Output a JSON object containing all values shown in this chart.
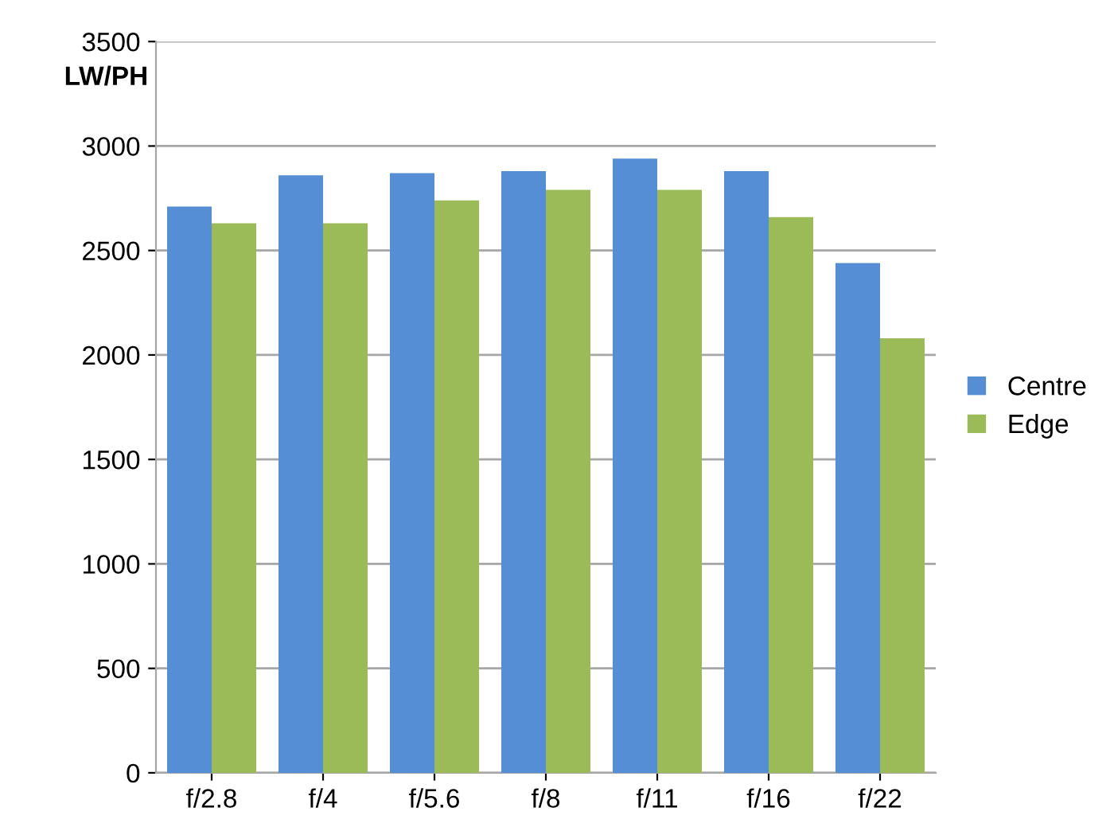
{
  "chart_data": {
    "type": "bar",
    "ylabel": "LW/PH",
    "categories": [
      "f/2.8",
      "f/4",
      "f/5.6",
      "f/8",
      "f/11",
      "f/16",
      "f/22"
    ],
    "series": [
      {
        "name": "Centre",
        "color": "#558ed5",
        "values": [
          2710,
          2860,
          2870,
          2880,
          2940,
          2880,
          2440
        ]
      },
      {
        "name": "Edge",
        "color": "#9bbb59",
        "values": [
          2630,
          2630,
          2740,
          2790,
          2790,
          2660,
          2080
        ]
      }
    ],
    "ylim": [
      0,
      3500
    ],
    "yticks": [
      0,
      500,
      1000,
      1500,
      2000,
      2500,
      3000,
      3500
    ],
    "grid": "y",
    "legend": "right"
  }
}
